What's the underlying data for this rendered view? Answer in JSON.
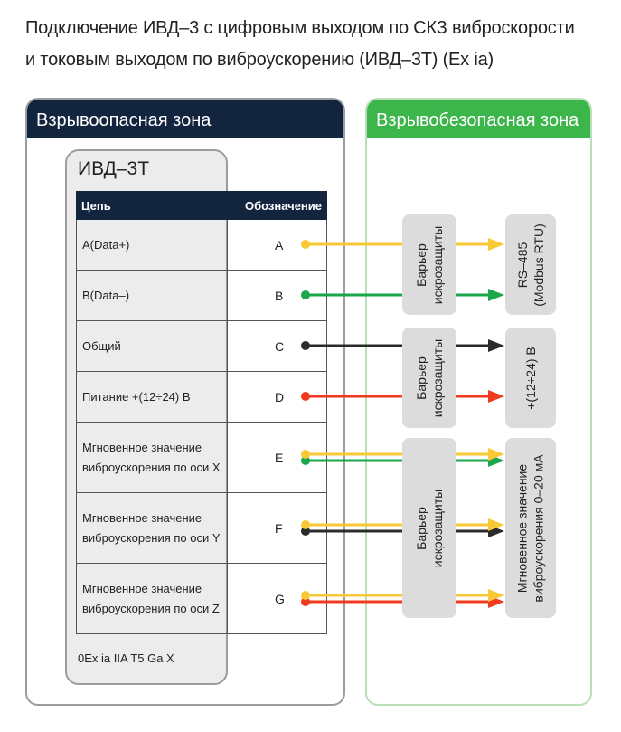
{
  "title": {
    "line1": "Подключение ИВД–3 с цифровым выходом по СКЗ виброскорости",
    "line2": "и токовым выходом по виброускорению (ИВД–3Т) (Ex ia)"
  },
  "zones": {
    "hazardous": "Взрывоопасная зона",
    "safe": "Взрывобезопасная зона"
  },
  "device": {
    "name": "ИВД–3Т",
    "marking": "0Ex ia IIA T5 Ga X",
    "table": {
      "headers": [
        "Цепь",
        "Обозначение"
      ],
      "rows": [
        {
          "circuit": "A(Data+)",
          "pin": "A"
        },
        {
          "circuit": "B(Data–)",
          "pin": "B"
        },
        {
          "circuit": "Общий",
          "pin": "C"
        },
        {
          "circuit": "Питание +(12÷24) В",
          "pin": "D"
        },
        {
          "circuit": "Мгновенное значение виброускорения по оси X",
          "pin": "E"
        },
        {
          "circuit": "Мгновенное значение виброускорения по оси Y",
          "pin": "F"
        },
        {
          "circuit": "Мгновенное значение виброускорения по оси Z",
          "pin": "G"
        }
      ]
    }
  },
  "barriers": [
    {
      "line1": "Барьер",
      "line2": "искрозащиты"
    },
    {
      "line1": "Барьер",
      "line2": "искрозащиты"
    },
    {
      "line1": "Барьер",
      "line2": "искрозащиты"
    }
  ],
  "targets": [
    {
      "line1": "RS–485",
      "line2": "(Modbus RTU)"
    },
    {
      "line1": "+(12÷24) В",
      "line2": ""
    },
    {
      "line1": "Мгновенное значение",
      "line2": "виброускорения 0–20 мА"
    }
  ],
  "colors": {
    "yellow": "#f9c935",
    "green": "#1aa64a",
    "black": "#2b2b2b",
    "red": "#f03a1e",
    "navy": "#13243f",
    "safe_green": "#3cb54a"
  },
  "wires": [
    {
      "pin": "A",
      "color": "yellow"
    },
    {
      "pin": "B",
      "color": "green"
    },
    {
      "pin": "C",
      "color": "black"
    },
    {
      "pin": "D",
      "color": "red"
    },
    {
      "pin": "E",
      "color": "green"
    },
    {
      "pin": "E",
      "color": "yellow"
    },
    {
      "pin": "F",
      "color": "black"
    },
    {
      "pin": "F",
      "color": "yellow"
    },
    {
      "pin": "G",
      "color": "red"
    },
    {
      "pin": "G",
      "color": "yellow"
    }
  ]
}
